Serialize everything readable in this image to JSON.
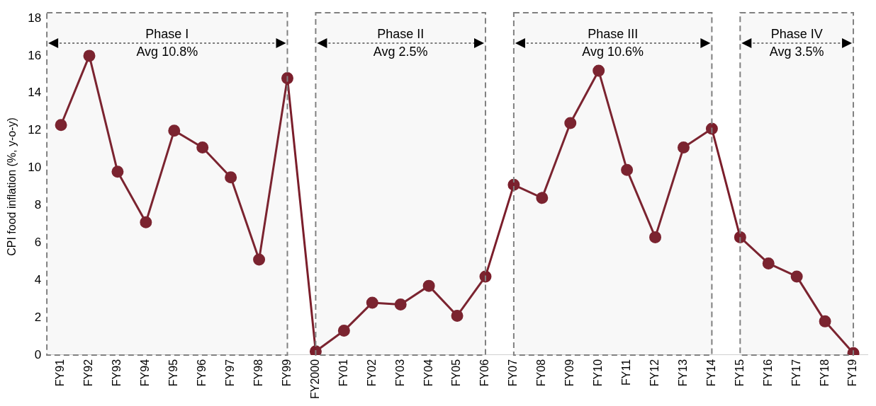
{
  "chart_data": {
    "type": "line",
    "ylabel": "CPI food inflation (%, y-o-y)",
    "categories": [
      "FY91",
      "FY92",
      "FY93",
      "FY94",
      "FY95",
      "FY96",
      "FY97",
      "FY98",
      "FY99",
      "FY2000",
      "FY01",
      "FY02",
      "FY03",
      "FY04",
      "FY05",
      "FY06",
      "FY07",
      "FY08",
      "FY09",
      "FY10",
      "FY11",
      "FY12",
      "FY13",
      "FY14",
      "FY15",
      "FY16",
      "FY17",
      "FY18",
      "FY19"
    ],
    "series": [
      {
        "color": "#7b1e2b",
        "values": [
          12.3,
          16.0,
          9.8,
          7.1,
          12.0,
          11.1,
          9.5,
          5.1,
          14.8,
          0.2,
          1.3,
          2.8,
          2.7,
          3.7,
          2.1,
          4.2,
          9.1,
          8.4,
          12.4,
          15.2,
          9.9,
          6.3,
          11.1,
          12.1,
          6.3,
          4.9,
          4.2,
          1.8,
          0.1
        ]
      }
    ],
    "ylim": [
      0,
      18
    ],
    "yticks": [
      0,
      2,
      4,
      6,
      8,
      10,
      12,
      14,
      16,
      18
    ],
    "grid": false,
    "legend": false,
    "marker": "circle",
    "line_style": "solid",
    "bands": [
      {
        "axis": "x",
        "from": "FY91",
        "to": "FY99",
        "label": "Phase I\nAvg 10.8%",
        "color": "#808080"
      },
      {
        "axis": "x",
        "from": "FY2000",
        "to": "FY06",
        "label": "Phase II\nAvg 2.5%",
        "color": "#808080"
      },
      {
        "axis": "x",
        "from": "FY07",
        "to": "FY14",
        "label": "Phase III\nAvg 10.6%",
        "color": "#808080"
      },
      {
        "axis": "x",
        "from": "FY15",
        "to": "FY19",
        "label": "Phase IV\nAvg 3.5%",
        "color": "#808080"
      }
    ]
  }
}
